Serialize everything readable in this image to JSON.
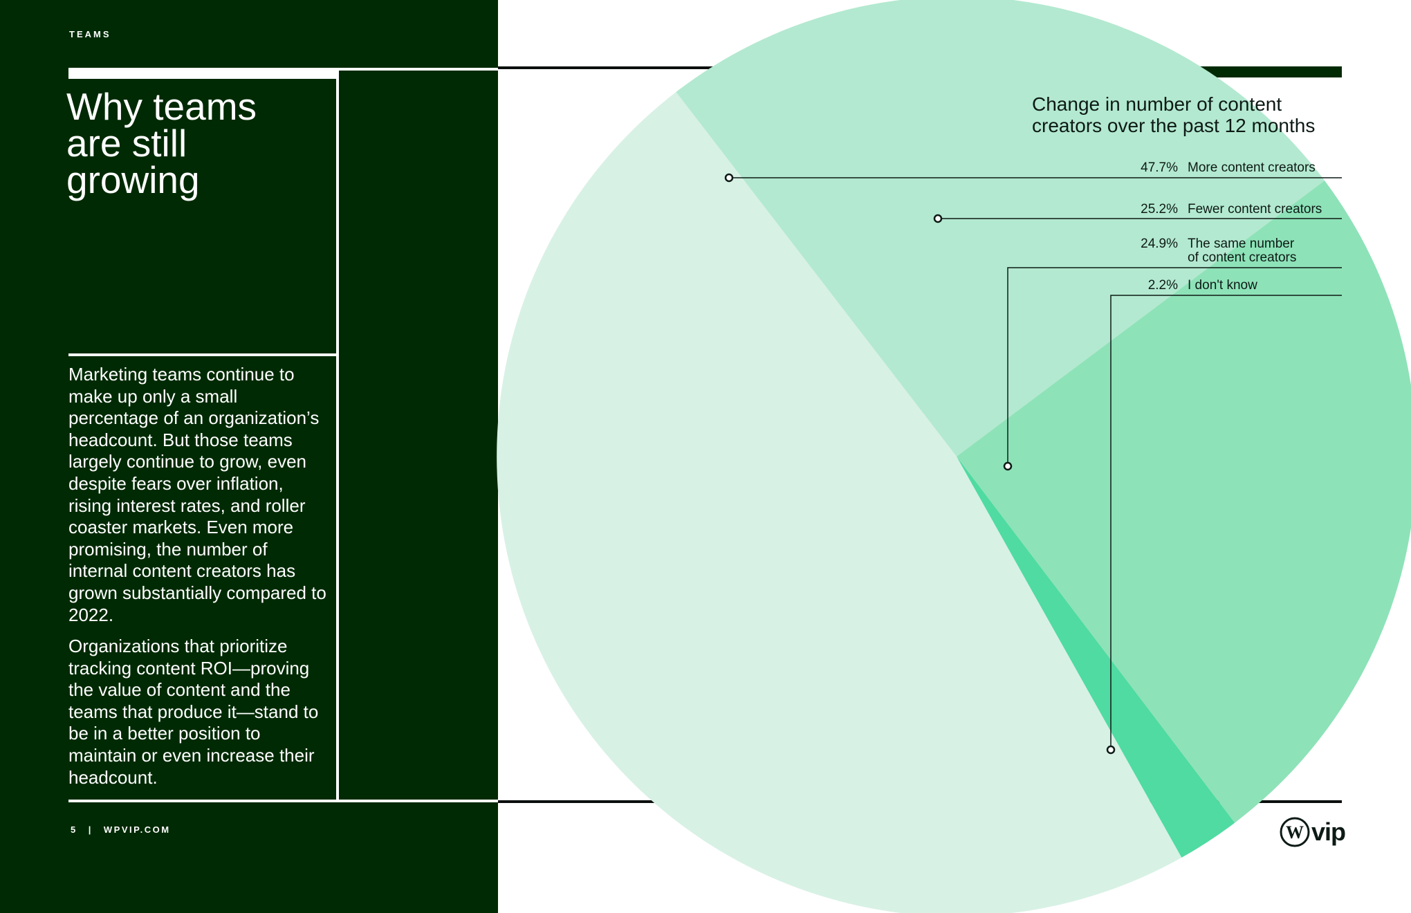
{
  "page": {
    "section_label": "TEAMS",
    "headline_lines": [
      "Why teams",
      "are still",
      "growing"
    ],
    "paragraphs": [
      "Marketing teams continue to make up only a small percentage of an organization’s headcount. But those teams largely continue to grow, even despite fears over inflation, rising interest rates, and roller coaster markets. Even more promising, the number of internal content creators has grown substantially compared to 2022.",
      "Organizations that prioritize tracking content ROI—proving the value of content and the teams that produce it—stand to be in a better position to maintain or even increase their headcount."
    ],
    "footer": {
      "page_number": "5",
      "separator": "|",
      "site": "WPVIP.COM"
    },
    "logo_text": "vip"
  },
  "colors": {
    "dark_green": "#002a04",
    "slice_more": "#d8f1e5",
    "slice_fewer": "#b3e9d0",
    "slice_same": "#8ee2b8",
    "slice_dont_know": "#4fdba1"
  },
  "chart_data": {
    "type": "pie",
    "title": "Change in number of content creators over the past 12 months",
    "title_lines": [
      "Change in number of content",
      "creators over the past 12 months"
    ],
    "slices": [
      {
        "label": "More content creators",
        "label_lines": [
          "More content creators"
        ],
        "value": 47.7,
        "display": "47.7%"
      },
      {
        "label": "Fewer content creators",
        "label_lines": [
          "Fewer content creators"
        ],
        "value": 25.2,
        "display": "25.2%"
      },
      {
        "label": "The same number of content creators",
        "label_lines": [
          "The same number",
          "of content creators"
        ],
        "value": 24.9,
        "display": "24.9%"
      },
      {
        "label": "I don't know",
        "label_lines": [
          "I don't know"
        ],
        "value": 2.2,
        "display": "2.2%"
      }
    ]
  }
}
